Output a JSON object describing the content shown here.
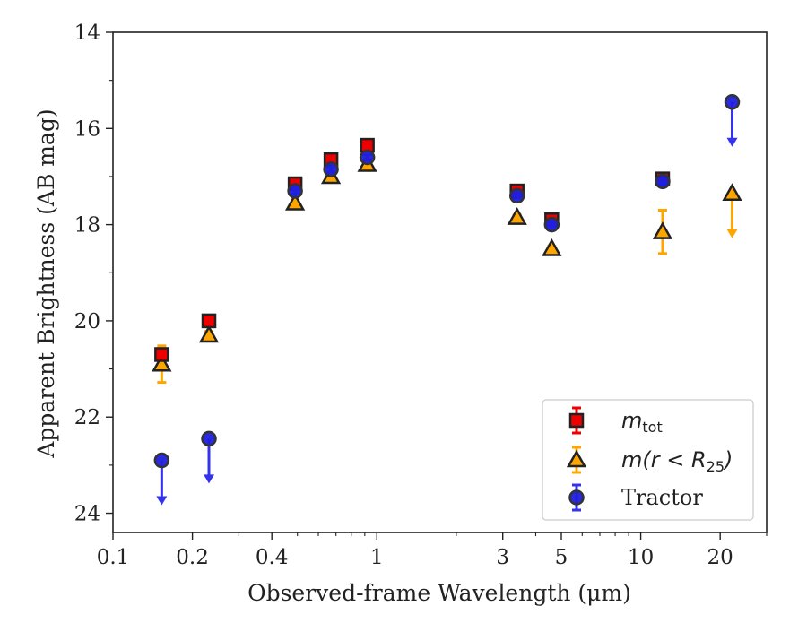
{
  "chart_data": {
    "type": "scatter",
    "title": "",
    "xlabel": "Observed-frame Wavelength (μm)",
    "ylabel": "Apparent Brightness (AB mag)",
    "xscale": "log",
    "xlim": [
      0.1,
      30
    ],
    "ylim": [
      24.4,
      14
    ],
    "y_inverted": true,
    "x_ticks": [
      0.1,
      0.2,
      0.4,
      1,
      3,
      5,
      10,
      20
    ],
    "x_tick_labels": [
      "0.1",
      "0.2",
      "0.4",
      "1",
      "3",
      "5",
      "10",
      "20"
    ],
    "y_ticks": [
      14,
      16,
      18,
      20,
      22,
      24
    ],
    "y_tick_labels": [
      "14",
      "16",
      "18",
      "20",
      "22",
      "24"
    ],
    "grid": false,
    "legend_position": "lower-right",
    "colors": {
      "mtot": "#ee0000",
      "aperture": "#ffa500",
      "tractor": "#1f1fdd",
      "tractor_errbar": "#3333ee",
      "edge": "#222222"
    },
    "series": [
      {
        "key": "mtot",
        "name_main": "m",
        "name_sub": "tot",
        "marker": "square",
        "points": [
          {
            "x": 0.153,
            "y": 20.7,
            "err": 0.1
          },
          {
            "x": 0.231,
            "y": 20.0,
            "err": 0.08
          },
          {
            "x": 0.49,
            "y": 17.15,
            "err": 0.05
          },
          {
            "x": 0.67,
            "y": 16.65,
            "err": 0.05
          },
          {
            "x": 0.92,
            "y": 16.35,
            "err": 0.05
          },
          {
            "x": 3.4,
            "y": 17.3,
            "err": 0.05
          },
          {
            "x": 4.6,
            "y": 17.9,
            "err": 0.05
          },
          {
            "x": 12.1,
            "y": 17.05,
            "err": 0.05
          }
        ]
      },
      {
        "key": "aperture",
        "name_main": "m(r < R",
        "name_sub": "25",
        "name_tail": ")",
        "marker": "triangle",
        "points": [
          {
            "x": 0.153,
            "y": 20.9,
            "err": 0.38
          },
          {
            "x": 0.231,
            "y": 20.3,
            "err": 0.08
          },
          {
            "x": 0.49,
            "y": 17.55,
            "err": 0.05
          },
          {
            "x": 0.67,
            "y": 17.0,
            "err": 0.05
          },
          {
            "x": 0.92,
            "y": 16.75,
            "err": 0.05
          },
          {
            "x": 3.4,
            "y": 17.85,
            "err": 0.05
          },
          {
            "x": 4.6,
            "y": 18.5,
            "err": 0.05
          },
          {
            "x": 12.1,
            "y": 18.15,
            "err": 0.45
          },
          {
            "x": 22.2,
            "y": 17.35,
            "upper_limit": true
          }
        ]
      },
      {
        "key": "tractor",
        "name_main": "Tractor",
        "marker": "circle",
        "points": [
          {
            "x": 0.153,
            "y": 22.9,
            "upper_limit": true
          },
          {
            "x": 0.231,
            "y": 22.45,
            "upper_limit": true
          },
          {
            "x": 0.49,
            "y": 17.3,
            "err": 0.05
          },
          {
            "x": 0.67,
            "y": 16.85,
            "err": 0.05
          },
          {
            "x": 0.92,
            "y": 16.6,
            "err": 0.05
          },
          {
            "x": 3.4,
            "y": 17.4,
            "err": 0.05
          },
          {
            "x": 4.6,
            "y": 18.0,
            "err": 0.05
          },
          {
            "x": 12.1,
            "y": 17.1,
            "err": 0.05
          },
          {
            "x": 22.2,
            "y": 15.45,
            "upper_limit": true
          }
        ]
      }
    ]
  }
}
